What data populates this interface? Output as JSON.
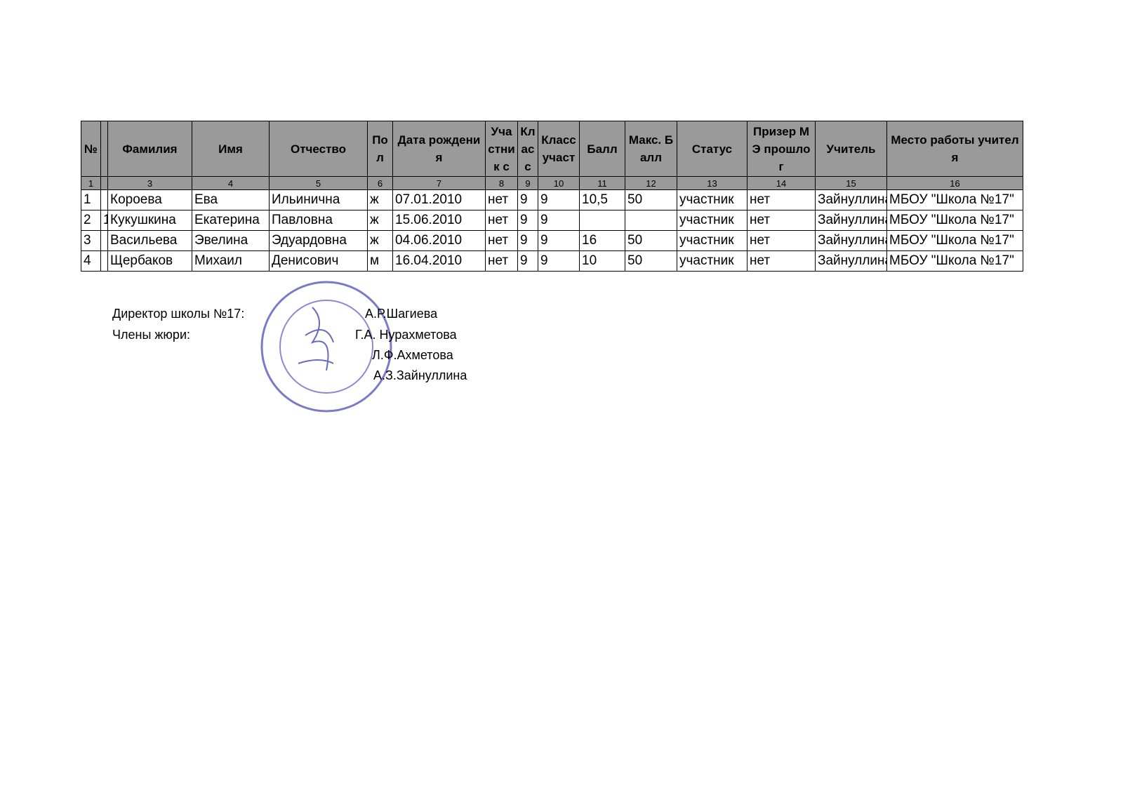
{
  "table": {
    "header": [
      "№",
      null,
      "Фамилия",
      "Имя",
      "Отчество",
      "Пол",
      "Дата рождения",
      "Участник с",
      "Класс",
      "Класс участ",
      "Балл",
      "Макс. Балл",
      "Статус",
      "Призер МЭ прошлог",
      "Учитель",
      "Место работы учителя"
    ],
    "numbers": [
      "1",
      null,
      "3",
      "4",
      "5",
      "6",
      "7",
      "8",
      "9",
      "10",
      "11",
      "12",
      "13",
      "14",
      "15",
      "16"
    ],
    "rows": [
      [
        "1",
        null,
        "Короева",
        "Ева",
        "Ильинична",
        "ж",
        "07.01.2010",
        "нет",
        "9",
        "9",
        "10,5",
        "50",
        "участник",
        "нет",
        "Зайнуллина",
        "МБОУ \"Школа №17\""
      ],
      [
        "2",
        "1",
        "Кукушкина",
        "Екатерина",
        "Павловна",
        "ж",
        "15.06.2010",
        "нет",
        "9",
        "9",
        null,
        null,
        "участник",
        "нет",
        "Зайнуллина",
        "МБОУ \"Школа №17\""
      ],
      [
        "3",
        null,
        "Васильева",
        "Эвелина",
        "Эдуардовна",
        "ж",
        "04.06.2010",
        "нет",
        "9",
        "9",
        "16",
        "50",
        "участник",
        "нет",
        "Зайнуллина",
        "МБОУ \"Школа №17\""
      ],
      [
        "4",
        null,
        "Щербаков",
        "Михаил",
        "Денисович",
        "м",
        "16.04.2010",
        "нет",
        "9",
        "9",
        "10",
        "50",
        "участник",
        "нет",
        "Зайнуллина",
        "МБОУ \"Школа №17\""
      ]
    ]
  },
  "signatures": {
    "director_label": "Директор школы №17:",
    "director": "А.Р.Шагиева",
    "jury_label": "Члены жюри:",
    "jury": [
      "Г.А. Нурахметова",
      "Л.Ф.Ахметова",
      "А.З.Зайнуллина"
    ]
  }
}
